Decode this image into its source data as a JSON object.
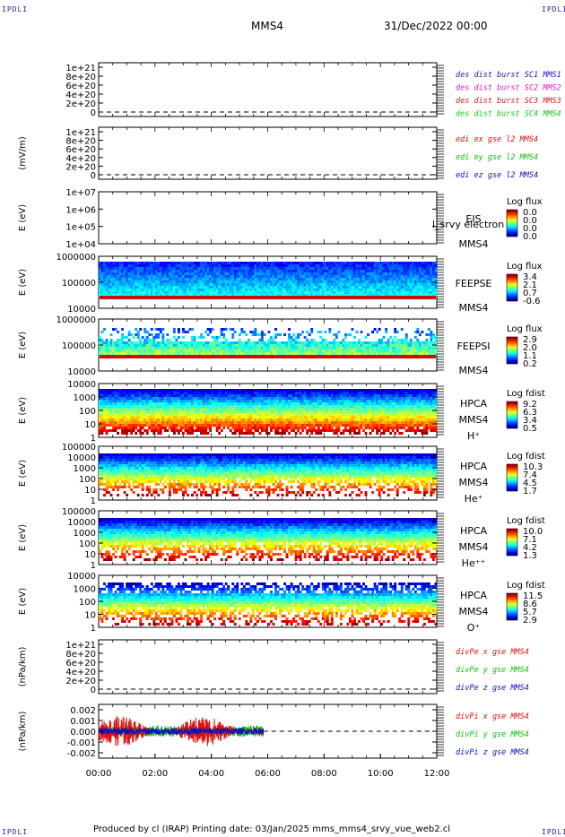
{
  "header": {
    "corner_tl": "IPDLI",
    "corner_tr": "IPDLI",
    "corner_bl": "IPDLI",
    "corner_br": "IPDLI",
    "spacecraft": "MMS4",
    "date": "31/Dec/2022 00:00"
  },
  "footer": {
    "text": "Produced by cl (IRAP)   Printing date: 03/Jan/2025   mms_mms4_srvy_vue_web2.cl"
  },
  "colors": {
    "sc1": "#1a1aa8",
    "sc2": "#d81ad8",
    "sc3": "#d81a1a",
    "sc4": "#1ac81a",
    "x": "#e01010",
    "y": "#10c010",
    "z": "#1010c0"
  },
  "chart_data": [
    {
      "id": "p1",
      "type": "line",
      "ylabel": "",
      "ticks": [
        "0",
        "2e+20",
        "4e+20",
        "6e+20",
        "8e+20",
        "1e+21"
      ],
      "legend": [
        "des dist burst SC1 MMS1",
        "des dist burst SC2 MMS2",
        "des dist burst SC3 MMS3",
        "des dist burst SC4 MMS4"
      ],
      "legend_colors": [
        "#1a1aa8",
        "#d81ad8",
        "#d81a1a",
        "#1ac81a"
      ],
      "series": []
    },
    {
      "id": "p2",
      "type": "line",
      "ylabel": "(mV/m)",
      "ticks": [
        "0",
        "2e+20",
        "4e+20",
        "6e+20",
        "8e+20",
        "1e+21"
      ],
      "legend": [
        "edi ex gse l2 MMS4",
        "edi ey gse l2 MMS4",
        "edi ez gse l2 MMS4"
      ],
      "legend_colors": [
        "#e01010",
        "#10c010",
        "#1010c0"
      ],
      "series": []
    },
    {
      "id": "p3",
      "type": "heatmap",
      "ylabel": "E (eV)",
      "ticks": [
        "1e+04",
        "1e+05",
        "1e+06",
        "1e+07"
      ],
      "labels": [
        "EIS",
        "MMS4"
      ],
      "overlay_text": "l_srvy electron to",
      "cbar_title": "Log flux",
      "cbar_ticks": [
        "0.0",
        "0.0",
        "0.0",
        "0.0"
      ]
    },
    {
      "id": "p4",
      "type": "heatmap",
      "ylabel": "E (eV)",
      "ticks": [
        "10000",
        "100000",
        "1000000"
      ],
      "labels": [
        "FEEPSE",
        "MMS4"
      ],
      "cbar_title": "Log flux",
      "cbar_ticks": [
        "3.4",
        "2.1",
        "0.7",
        "-0.6"
      ]
    },
    {
      "id": "p5",
      "type": "heatmap",
      "ylabel": "E (eV)",
      "ticks": [
        "10000",
        "100000",
        "1000000"
      ],
      "labels": [
        "FEEPSI",
        "MMS4"
      ],
      "cbar_title": "Log flux",
      "cbar_ticks": [
        "2.9",
        "2.0",
        "1.1",
        "0.2"
      ]
    },
    {
      "id": "p6",
      "type": "heatmap",
      "ylabel": "E (eV)",
      "ticks": [
        "1",
        "10",
        "100",
        "1000",
        "10000"
      ],
      "labels": [
        "HPCA",
        "MMS4",
        "H⁺"
      ],
      "cbar_title": "Log fdist",
      "cbar_ticks": [
        "9.2",
        "6.3",
        "3.4",
        "0.5"
      ]
    },
    {
      "id": "p7",
      "type": "heatmap",
      "ylabel": "E (eV)",
      "ticks": [
        "1",
        "10",
        "100",
        "1000",
        "10000",
        "100000"
      ],
      "labels": [
        "HPCA",
        "MMS4",
        "He⁺"
      ],
      "cbar_title": "Log fdist",
      "cbar_ticks": [
        "10.3",
        "7.4",
        "4.5",
        "1.7"
      ]
    },
    {
      "id": "p8",
      "type": "heatmap",
      "ylabel": "E (eV)",
      "ticks": [
        "1",
        "10",
        "100",
        "1000",
        "10000",
        "100000"
      ],
      "labels": [
        "HPCA",
        "MMS4",
        "He⁺⁺"
      ],
      "cbar_title": "Log fdist",
      "cbar_ticks": [
        "10.0",
        "7.1",
        "4.2",
        "1.3"
      ]
    },
    {
      "id": "p9",
      "type": "heatmap",
      "ylabel": "E (eV)",
      "ticks": [
        "1",
        "10",
        "100",
        "1000",
        "10000"
      ],
      "labels": [
        "HPCA",
        "MMS4",
        "O⁺"
      ],
      "cbar_title": "Log fdist",
      "cbar_ticks": [
        "11.5",
        "8.6",
        "5.7",
        "2.9"
      ]
    },
    {
      "id": "p10",
      "type": "line",
      "ylabel": "(nPa/km)",
      "ticks": [
        "0",
        "2e+20",
        "4e+20",
        "6e+20",
        "8e+20",
        "1e+21"
      ],
      "legend": [
        "divPe x gse MMS4",
        "divPe y gse MMS4",
        "divPe z gse MMS4"
      ],
      "legend_colors": [
        "#e01010",
        "#10c010",
        "#1010c0"
      ],
      "series": []
    },
    {
      "id": "p11",
      "type": "line",
      "ylabel": "(nPa/km)",
      "ticks": [
        "-0.002",
        "-0.001",
        "0.000",
        "0.001",
        "0.002"
      ],
      "ylim": [
        -0.0025,
        0.0025
      ],
      "xlim_hours": [
        0,
        5.85
      ],
      "legend": [
        "divPi x gse MMS4",
        "divPi y gse MMS4",
        "divPi z gse MMS4"
      ],
      "legend_colors": [
        "#e01010",
        "#10c010",
        "#1010c0"
      ]
    }
  ],
  "xaxis": {
    "range_hours": [
      0,
      12
    ],
    "ticks": [
      "00:00",
      "02:00",
      "04:00",
      "06:00",
      "08:00",
      "10:00",
      "12:00"
    ]
  }
}
